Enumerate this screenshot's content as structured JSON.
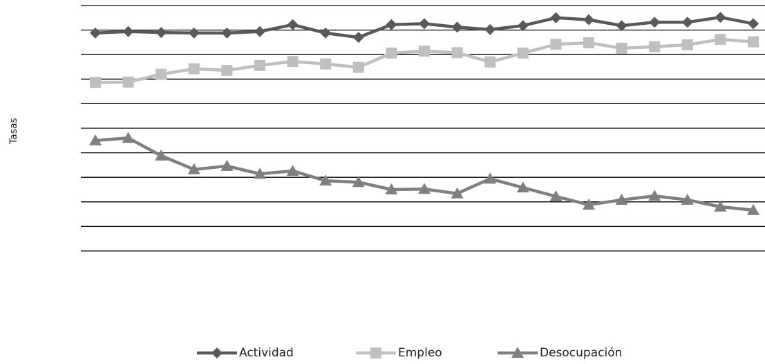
{
  "chart_data": {
    "type": "line",
    "y_label": "Tasas",
    "categories": [
      null,
      null,
      null,
      null,
      null,
      null,
      null,
      null,
      null,
      null,
      null,
      null,
      null,
      null,
      null,
      null,
      null,
      null,
      null,
      null,
      null
    ],
    "series": [
      {
        "name": "Actividad",
        "color": "#595959",
        "marker": "diamond",
        "values": [
          44.4,
          44.7,
          44.5,
          44.4,
          44.4,
          44.7,
          46.1,
          44.4,
          43.5,
          46.1,
          46.3,
          45.6,
          45.1,
          45.9,
          47.5,
          47.1,
          45.9,
          46.6,
          46.6,
          47.6,
          46.3
        ]
      },
      {
        "name": "Empleo",
        "color": "#bfbfbf",
        "marker": "square",
        "values": [
          34.3,
          34.4,
          36.0,
          37.1,
          36.8,
          37.8,
          38.6,
          38.1,
          37.4,
          40.3,
          40.7,
          40.4,
          38.5,
          40.3,
          42.1,
          42.4,
          41.3,
          41.6,
          42.0,
          43.1,
          42.6
        ]
      },
      {
        "name": "Desocupación",
        "color": "#7f7f7f",
        "marker": "triangle",
        "values": [
          22.5,
          23.0,
          19.4,
          16.6,
          17.3,
          15.7,
          16.3,
          14.3,
          14.0,
          12.5,
          12.6,
          11.7,
          14.7,
          12.9,
          11.1,
          9.4,
          10.4,
          11.2,
          10.4,
          9.0,
          8.3
        ]
      }
    ],
    "ylim": [
      0,
      50
    ],
    "yticks": [
      0,
      5,
      10,
      15,
      20,
      25,
      30,
      35,
      40,
      45,
      50
    ],
    "grid": true,
    "legend": "bottom"
  }
}
